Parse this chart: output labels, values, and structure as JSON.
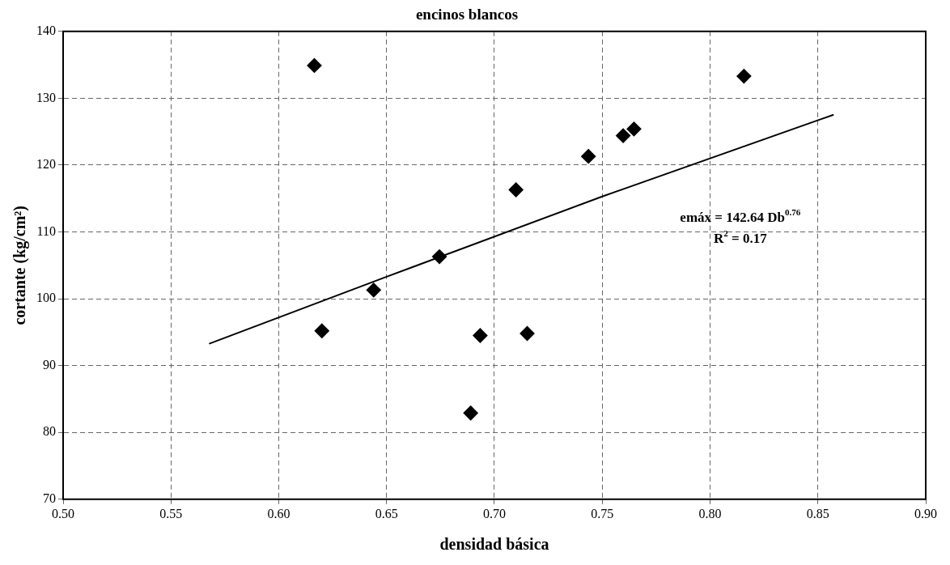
{
  "chart_data": {
    "type": "scatter",
    "title": "encinos blancos",
    "xlabel": "densidad básica",
    "ylabel": "cortante (kg/cm²)",
    "series": [
      {
        "type": "scatter",
        "color": "#000000",
        "marker": "diamond",
        "x": [
          0.6165,
          0.62,
          0.644,
          0.6745,
          0.689,
          0.6934,
          0.71,
          0.7152,
          0.7436,
          0.7597,
          0.7647,
          0.8157
        ],
        "values": [
          134.9,
          95.2,
          101.3,
          106.3,
          82.9,
          94.5,
          116.3,
          94.8,
          121.3,
          124.4,
          125.4,
          133.3
        ]
      },
      {
        "type": "line",
        "color": "#000000",
        "marker": "none",
        "line_style": "solid",
        "x": [
          0.568,
          0.65,
          0.75,
          0.857
        ],
        "values": [
          93.3,
          103.3,
          115.3,
          127.5
        ]
      }
    ],
    "xlim": [
      0.5,
      0.9
    ],
    "xticks": [
      {
        "value": 0.5,
        "label": "0.50"
      },
      {
        "value": 0.55,
        "label": "0.55"
      },
      {
        "value": 0.6,
        "label": "0.60"
      },
      {
        "value": 0.65,
        "label": "0.65"
      },
      {
        "value": 0.7,
        "label": "0.70"
      },
      {
        "value": 0.75,
        "label": "0.75"
      },
      {
        "value": 0.8,
        "label": "0.80"
      },
      {
        "value": 0.85,
        "label": "0.85"
      },
      {
        "value": 0.9,
        "label": "0.90"
      }
    ],
    "ylim": [
      70,
      140
    ],
    "yticks": [
      70,
      80,
      90,
      100,
      110,
      120,
      130,
      140
    ],
    "grid": true,
    "legend": false,
    "annotations": [
      "emáx = 142.64 Db$^{0.76}$",
      "R$^{2}$ = 0.17"
    ]
  }
}
